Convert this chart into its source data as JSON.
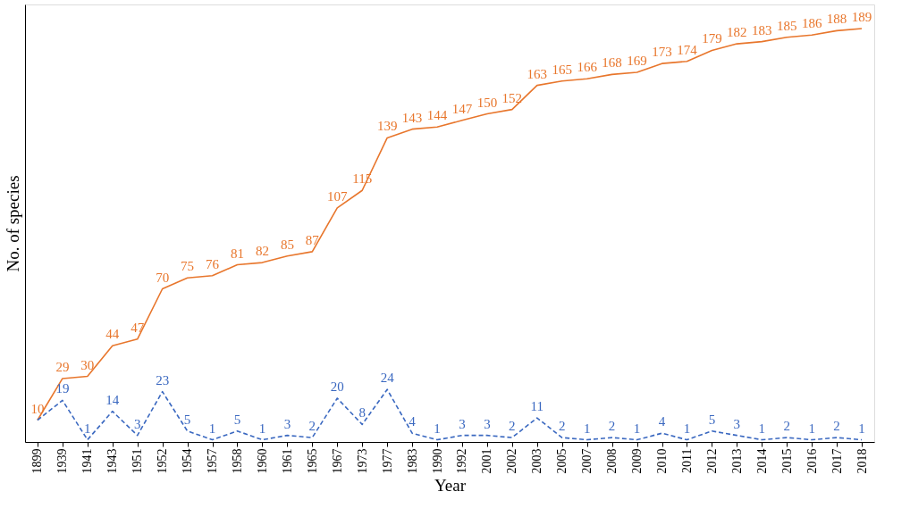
{
  "chart_data": {
    "type": "line",
    "xlabel": "Year",
    "ylabel": "No. of species",
    "categories": [
      "1899",
      "1939",
      "1941",
      "1943",
      "1951",
      "1952",
      "1954",
      "1957",
      "1958",
      "1960",
      "1961",
      "1965",
      "1967",
      "1973",
      "1977",
      "1983",
      "1990",
      "1992",
      "2001",
      "2002",
      "2003",
      "2005",
      "2007",
      "2008",
      "2009",
      "2010",
      "2011",
      "2012",
      "2013",
      "2014",
      "2015",
      "2016",
      "2017",
      "2018"
    ],
    "series": [
      {
        "color": "#e8762c",
        "line_style": "solid",
        "values": [
          10,
          29,
          30,
          44,
          47,
          70,
          75,
          76,
          81,
          82,
          85,
          87,
          107,
          115,
          139,
          143,
          144,
          147,
          150,
          152,
          163,
          165,
          166,
          168,
          169,
          173,
          174,
          179,
          182,
          183,
          185,
          186,
          188,
          189
        ]
      },
      {
        "color": "#3a68c0",
        "line_style": "dashed",
        "values": [
          10,
          19,
          1,
          14,
          3,
          23,
          5,
          1,
          5,
          1,
          3,
          2,
          20,
          8,
          24,
          4,
          1,
          3,
          3,
          2,
          11,
          2,
          1,
          2,
          1,
          4,
          1,
          5,
          3,
          1,
          2,
          1,
          2,
          1
        ],
        "value_labels": [
          null,
          "19",
          "1",
          "14",
          "3",
          "23",
          "5",
          "1",
          "5",
          "1",
          "3",
          "2",
          "20",
          "8",
          "24",
          "4",
          "1",
          "3",
          "3",
          "2",
          "11",
          "2",
          "1",
          "2",
          "1",
          "4",
          "1",
          "5",
          "3",
          "1",
          "2",
          "1",
          "2",
          "1"
        ]
      }
    ],
    "data_labels": true,
    "grid": false,
    "legend": false,
    "marker": "none",
    "tick_labels": "x"
  }
}
